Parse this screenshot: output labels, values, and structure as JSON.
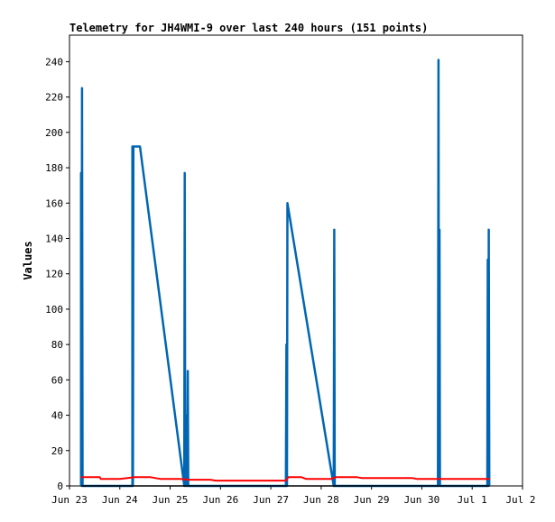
{
  "chart_data": {
    "type": "line",
    "title": "Telemetry for JH4WMI-9 over last 240 hours (151 points)",
    "xlabel": "",
    "ylabel": "Values",
    "ylim": [
      0,
      255
    ],
    "xlim": [
      "Jun 23",
      "Jul 2"
    ],
    "grid": false,
    "legend": "none",
    "x_ticks": [
      "Jun 23",
      "Jun 24",
      "Jun 25",
      "Jun 26",
      "Jun 27",
      "Jun 28",
      "Jun 29",
      "Jun 30",
      "Jul 1",
      "Jul 2"
    ],
    "y_ticks": [
      0,
      20,
      40,
      60,
      80,
      100,
      120,
      140,
      160,
      180,
      200,
      220,
      240
    ],
    "x_unit": "days since Jun 23 00:00",
    "series": [
      {
        "color": "#0066b3",
        "points": [
          [
            0.23,
            0
          ],
          [
            0.23,
            177
          ],
          [
            0.24,
            0
          ],
          [
            0.25,
            225
          ],
          [
            0.26,
            0
          ],
          [
            1.25,
            0
          ],
          [
            1.25,
            192
          ],
          [
            1.26,
            0
          ],
          [
            1.27,
            192
          ],
          [
            1.4,
            192
          ],
          [
            2.28,
            0
          ],
          [
            2.29,
            177
          ],
          [
            2.3,
            0
          ],
          [
            2.31,
            10
          ],
          [
            2.32,
            0
          ],
          [
            2.33,
            40
          ],
          [
            2.34,
            0
          ],
          [
            2.35,
            65
          ],
          [
            2.36,
            0
          ],
          [
            4.3,
            0
          ],
          [
            4.31,
            80
          ],
          [
            4.32,
            0
          ],
          [
            4.33,
            160
          ],
          [
            5.25,
            0
          ],
          [
            5.26,
            145
          ],
          [
            5.27,
            0
          ],
          [
            7.32,
            0
          ],
          [
            7.33,
            241
          ],
          [
            7.34,
            0
          ],
          [
            7.35,
            145
          ],
          [
            7.36,
            0
          ],
          [
            8.3,
            0
          ],
          [
            8.31,
            128
          ],
          [
            8.32,
            0
          ],
          [
            8.33,
            145
          ],
          [
            8.34,
            0
          ]
        ]
      },
      {
        "color": "#ff0000",
        "points": [
          [
            0.23,
            5
          ],
          [
            0.6,
            5
          ],
          [
            0.62,
            4
          ],
          [
            1.0,
            4
          ],
          [
            1.3,
            5
          ],
          [
            1.6,
            5
          ],
          [
            1.8,
            4
          ],
          [
            2.2,
            4
          ],
          [
            2.35,
            3.5
          ],
          [
            2.8,
            3.5
          ],
          [
            2.9,
            3
          ],
          [
            4.0,
            3
          ],
          [
            4.3,
            3
          ],
          [
            4.35,
            5
          ],
          [
            4.6,
            5
          ],
          [
            4.7,
            4
          ],
          [
            5.2,
            4
          ],
          [
            5.3,
            5
          ],
          [
            5.7,
            5
          ],
          [
            5.8,
            4.5
          ],
          [
            6.8,
            4.5
          ],
          [
            6.9,
            4
          ],
          [
            8.35,
            4
          ]
        ]
      },
      {
        "color": "#000000",
        "points": [
          [
            0.23,
            0
          ],
          [
            8.35,
            0
          ]
        ]
      }
    ]
  }
}
